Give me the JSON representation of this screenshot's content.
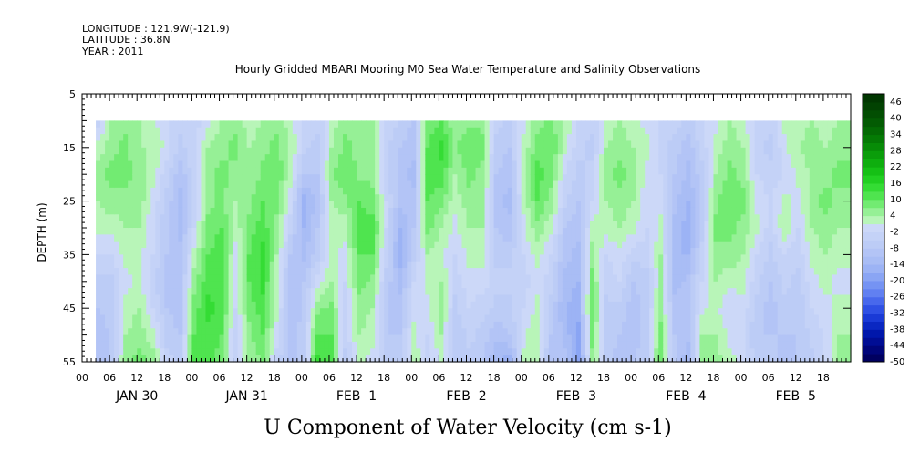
{
  "header": {
    "longitude": "LONGITUDE : 121.9W(-121.9)",
    "latitude": "LATITUDE : 36.8N",
    "year": "YEAR : 2011"
  },
  "chart_data": {
    "type": "heatmap",
    "title": "Hourly Gridded MBARI Mooring M0 Sea Water Temperature and Salinity Observations",
    "xlabel": "U Component of Water Velocity (cm s-1)",
    "ylabel": "DEPTH (m)",
    "ylim": [
      5,
      55
    ],
    "y_inverted": true,
    "y_ticks": [
      5,
      15,
      25,
      35,
      45,
      55
    ],
    "x_range_hours": [
      0,
      168
    ],
    "x_hour_ticks": [
      "00",
      "06",
      "12",
      "18",
      "00",
      "06",
      "12",
      "18",
      "00",
      "06",
      "12",
      "18",
      "00",
      "06",
      "12",
      "18",
      "00",
      "06",
      "12",
      "18",
      "00",
      "06",
      "12",
      "18",
      "00",
      "06",
      "12",
      "18"
    ],
    "x_day_labels": [
      "JAN 30",
      "JAN 31",
      "FEB  1",
      "FEB  2",
      "FEB  3",
      "FEB  4",
      "FEB  5"
    ],
    "data_start_hour": 3,
    "data_top_depth": 10,
    "depths": [
      10,
      15,
      20,
      25,
      30,
      35,
      40,
      45,
      50,
      55
    ],
    "times_hours": [
      3,
      6,
      9,
      12,
      15,
      18,
      21,
      24,
      27,
      30,
      33,
      36,
      39,
      42,
      45,
      48,
      51,
      54,
      57,
      60,
      63,
      66,
      69,
      72,
      75,
      78,
      81,
      84,
      87,
      90,
      93,
      96,
      99,
      102,
      105,
      108,
      111,
      114,
      117,
      120,
      123,
      126,
      129,
      132,
      135,
      138,
      141,
      144,
      147,
      150,
      153,
      156,
      159,
      162,
      165
    ],
    "u_profiles": [
      [
        -4,
        2,
        6,
        4,
        2,
        -2,
        -6,
        -8,
        -10,
        -10
      ],
      [
        4,
        6,
        8,
        6,
        2,
        -2,
        -6,
        -6,
        -8,
        -8
      ],
      [
        6,
        8,
        8,
        6,
        4,
        2,
        0,
        2,
        4,
        6
      ],
      [
        4,
        4,
        6,
        6,
        4,
        2,
        2,
        4,
        6,
        8
      ],
      [
        2,
        4,
        2,
        0,
        -2,
        -2,
        -4,
        -2,
        2,
        6
      ],
      [
        -2,
        0,
        -4,
        -6,
        -8,
        -8,
        -10,
        -8,
        -6,
        -4
      ],
      [
        -4,
        -6,
        -10,
        -12,
        -12,
        -10,
        -10,
        -10,
        -8,
        -6
      ],
      [
        -4,
        -2,
        -4,
        -4,
        -2,
        2,
        6,
        8,
        10,
        12
      ],
      [
        0,
        4,
        6,
        6,
        8,
        10,
        12,
        14,
        12,
        12
      ],
      [
        4,
        6,
        8,
        8,
        10,
        12,
        12,
        12,
        10,
        8
      ],
      [
        6,
        8,
        6,
        4,
        2,
        0,
        -2,
        -2,
        -4,
        -4
      ],
      [
        2,
        4,
        4,
        6,
        8,
        10,
        10,
        8,
        6,
        4
      ],
      [
        4,
        6,
        8,
        10,
        12,
        14,
        14,
        12,
        10,
        8
      ],
      [
        6,
        8,
        10,
        8,
        6,
        4,
        2,
        2,
        0,
        -4
      ],
      [
        2,
        4,
        2,
        0,
        -4,
        -8,
        -10,
        -10,
        -10,
        -10
      ],
      [
        -2,
        -4,
        -8,
        -16,
        -14,
        -12,
        -8,
        -8,
        -6,
        -6
      ],
      [
        -4,
        -6,
        -8,
        -10,
        -8,
        -6,
        0,
        6,
        10,
        14
      ],
      [
        2,
        4,
        6,
        4,
        2,
        2,
        4,
        8,
        10,
        12
      ],
      [
        6,
        8,
        10,
        6,
        2,
        0,
        -2,
        -4,
        -4,
        -6
      ],
      [
        4,
        6,
        6,
        10,
        12,
        10,
        8,
        6,
        4,
        2
      ],
      [
        4,
        4,
        6,
        8,
        12,
        10,
        6,
        4,
        2,
        0
      ],
      [
        -2,
        -4,
        -4,
        -2,
        -2,
        -4,
        -6,
        -8,
        -8,
        -6
      ],
      [
        -6,
        -8,
        -10,
        -10,
        -14,
        -16,
        -12,
        -10,
        -8,
        -6
      ],
      [
        -8,
        -10,
        -12,
        -10,
        -8,
        -6,
        -2,
        0,
        2,
        4
      ],
      [
        8,
        10,
        12,
        10,
        8,
        4,
        2,
        0,
        -2,
        -4
      ],
      [
        10,
        14,
        12,
        8,
        4,
        2,
        4,
        6,
        4,
        2
      ],
      [
        4,
        6,
        4,
        2,
        0,
        -2,
        -4,
        -6,
        -8,
        -8
      ],
      [
        6,
        10,
        8,
        6,
        4,
        2,
        0,
        -2,
        -4,
        -6
      ],
      [
        6,
        8,
        6,
        6,
        4,
        2,
        0,
        -4,
        -6,
        -8
      ],
      [
        -4,
        -6,
        -8,
        -10,
        -8,
        -6,
        -4,
        -6,
        -10,
        -14
      ],
      [
        -6,
        -8,
        -10,
        -12,
        -10,
        -6,
        -4,
        -6,
        -8,
        -16
      ],
      [
        0,
        2,
        4,
        2,
        0,
        -2,
        -4,
        -2,
        0,
        2
      ],
      [
        6,
        8,
        12,
        10,
        6,
        2,
        0,
        2,
        4,
        2
      ],
      [
        8,
        10,
        8,
        6,
        2,
        -2,
        -4,
        -6,
        -8,
        -10
      ],
      [
        4,
        2,
        -2,
        -4,
        -8,
        -10,
        -12,
        -14,
        -12,
        -10
      ],
      [
        -2,
        -4,
        -6,
        -8,
        -10,
        -12,
        -14,
        -16,
        -18,
        -20
      ],
      [
        -4,
        -6,
        -4,
        -2,
        2,
        6,
        8,
        10,
        8,
        6
      ],
      [
        2,
        4,
        6,
        4,
        2,
        -2,
        -4,
        -6,
        -6,
        -6
      ],
      [
        4,
        6,
        8,
        6,
        4,
        0,
        -2,
        -6,
        -8,
        -10
      ],
      [
        2,
        4,
        6,
        4,
        2,
        -4,
        -8,
        -10,
        -10,
        -8
      ],
      [
        0,
        2,
        0,
        -2,
        -2,
        -4,
        -6,
        -6,
        -6,
        -6
      ],
      [
        -2,
        -4,
        -2,
        0,
        2,
        4,
        4,
        6,
        8,
        10
      ],
      [
        -4,
        -6,
        -8,
        -10,
        -12,
        -14,
        -12,
        -10,
        -8,
        -8
      ],
      [
        -6,
        -10,
        -12,
        -14,
        -16,
        -14,
        -10,
        -8,
        -10,
        -14
      ],
      [
        -2,
        -4,
        -6,
        -8,
        -6,
        -4,
        -2,
        0,
        4,
        6
      ],
      [
        0,
        2,
        4,
        6,
        8,
        6,
        4,
        2,
        4,
        6
      ],
      [
        4,
        6,
        8,
        10,
        8,
        6,
        2,
        -2,
        0,
        2
      ],
      [
        2,
        4,
        6,
        8,
        6,
        4,
        2,
        0,
        -2,
        0
      ],
      [
        -2,
        -4,
        -2,
        0,
        2,
        -2,
        -4,
        -6,
        -8,
        -6
      ],
      [
        -4,
        -6,
        -4,
        -2,
        -4,
        -6,
        -8,
        -10,
        -8,
        -6
      ],
      [
        2,
        0,
        -2,
        2,
        4,
        -2,
        -4,
        -6,
        -8,
        -10
      ],
      [
        2,
        4,
        2,
        0,
        -2,
        -4,
        -6,
        -8,
        -8,
        -8
      ],
      [
        4,
        6,
        4,
        6,
        4,
        2,
        0,
        -2,
        -4,
        -6
      ],
      [
        2,
        4,
        6,
        8,
        6,
        4,
        2,
        0,
        -2,
        -2
      ],
      [
        4,
        6,
        8,
        6,
        4,
        2,
        0,
        2,
        4,
        6
      ]
    ],
    "colorbar_labels": [
      "46",
      "40",
      "34",
      "28",
      "22",
      "16",
      "10",
      "4",
      "-2",
      "-8",
      "-14",
      "-20",
      "-26",
      "-32",
      "-38",
      "-44",
      "-50"
    ],
    "colorbar_levels": [
      -50,
      -47,
      -44,
      -41,
      -38,
      -35,
      -32,
      -29,
      -26,
      -23,
      -20,
      -17,
      -14,
      -11,
      -8,
      -5,
      -2,
      1,
      4,
      7,
      10,
      13,
      16,
      19,
      22,
      25,
      28,
      31,
      34,
      37,
      40,
      43,
      46,
      49
    ],
    "colorbar_colors": [
      "#000060",
      "#00057a",
      "#000d94",
      "#0017ab",
      "#0a27c2",
      "#1a3ad6",
      "#2f50e4",
      "#4868ec",
      "#6180f1",
      "#7593f3",
      "#8aa5f4",
      "#9cb3f5",
      "#a9bdf5",
      "#b3c4f6",
      "#bcccf6",
      "#c4d2f7",
      "#ccd8f8",
      "#b8f5b8",
      "#96f096",
      "#72eb72",
      "#4fe44f",
      "#34dc34",
      "#21cf21",
      "#15c015",
      "#0eae0e",
      "#0a9d0a",
      "#078b07",
      "#057a05",
      "#046a04",
      "#035b03",
      "#024e02",
      "#024202",
      "#013701"
    ],
    "nan_color": "#ffffff",
    "grid": false
  }
}
